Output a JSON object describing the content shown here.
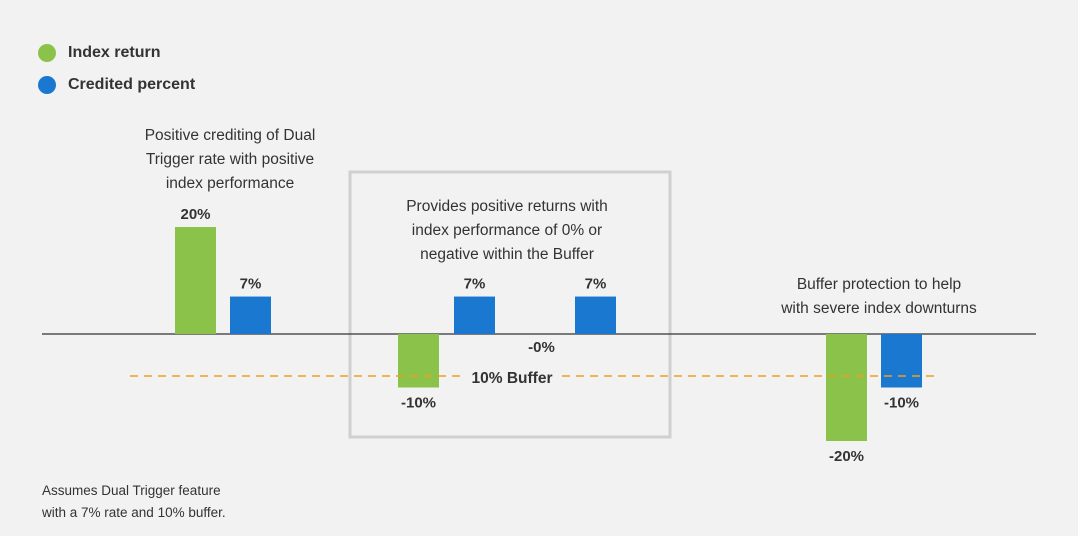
{
  "colors": {
    "index": "#8bc34a",
    "credited": "#1a78d0",
    "buffer_line": "#f0a020",
    "axis": "#333333",
    "box": "#d0d0d0"
  },
  "legend": [
    {
      "label": "Index return",
      "color": "#8bc34a"
    },
    {
      "label": "Credited percent",
      "color": "#1a78d0"
    }
  ],
  "annotations": {
    "positive": "Positive crediting of Dual\nTrigger rate with positive\nindex performance",
    "buffer_box": "Provides positive returns with\nindex performance of 0% or\nnegative within the Buffer",
    "protection": "Buffer protection to help\nwith severe index downturns"
  },
  "footnote": "Assumes Dual Trigger feature\nwith a 7% rate and 10% buffer.",
  "chart_data": {
    "type": "bar",
    "title": "",
    "xlabel": "",
    "ylabel": "",
    "ylim": [
      -25,
      25
    ],
    "grid": false,
    "legend_position": "top-left",
    "reference_line": {
      "value": -10,
      "label": "10% Buffer",
      "style": "dashed"
    },
    "scenarios": [
      {
        "index_return": 20,
        "index_label": "20%",
        "credited": 7,
        "credited_label": "7%"
      },
      {
        "index_return": -10,
        "index_label": "-10%",
        "credited": 7,
        "credited_label": "7%"
      },
      {
        "index_return": 0,
        "index_label": "-0%",
        "credited": 7,
        "credited_label": "7%"
      },
      {
        "index_return": -20,
        "index_label": "-20%",
        "credited": -10,
        "credited_label": "-10%"
      }
    ],
    "series": [
      {
        "name": "Index return",
        "values": [
          20,
          -10,
          0,
          -20
        ]
      },
      {
        "name": "Credited percent",
        "values": [
          7,
          7,
          7,
          -10
        ]
      }
    ]
  }
}
